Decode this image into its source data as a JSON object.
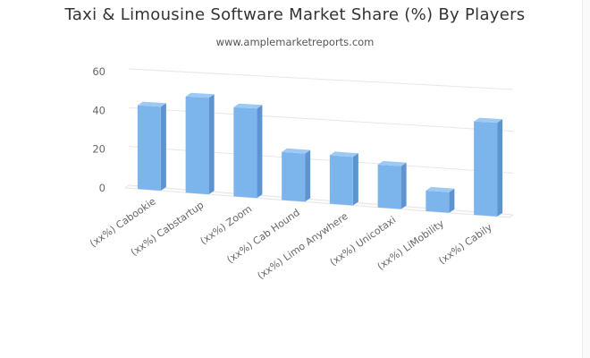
{
  "title": "Taxi & Limousine Software Market Share (%) By Players",
  "subtitle": "www.amplemarketreports.com",
  "chart_data": {
    "type": "bar",
    "title": "Taxi & Limousine Software Market Share (%) By Players",
    "subtitle": "www.amplemarketreports.com",
    "categories": [
      "(xx%) Cabookie",
      "(xx%) Cabstartup",
      "(xx%) Zoom",
      "(xx%) Cab Hound",
      "(xx%) Limo Anywhere",
      "(xx%) Unicotaxi",
      "(xx%) LiMobility",
      "(xx%) Cabily"
    ],
    "values": [
      43,
      49,
      45,
      24,
      24,
      21,
      10,
      45
    ],
    "yticks": [
      0,
      20,
      40,
      60
    ],
    "ylim": [
      0,
      60
    ],
    "xlabel": "",
    "ylabel": "",
    "grid": true,
    "legend": "none",
    "bar_color": "#7cb5ec",
    "bar_side_color": "#5d94cf",
    "bar_top_color": "#9dcaf5",
    "grid_color": "#e6e6e6"
  }
}
